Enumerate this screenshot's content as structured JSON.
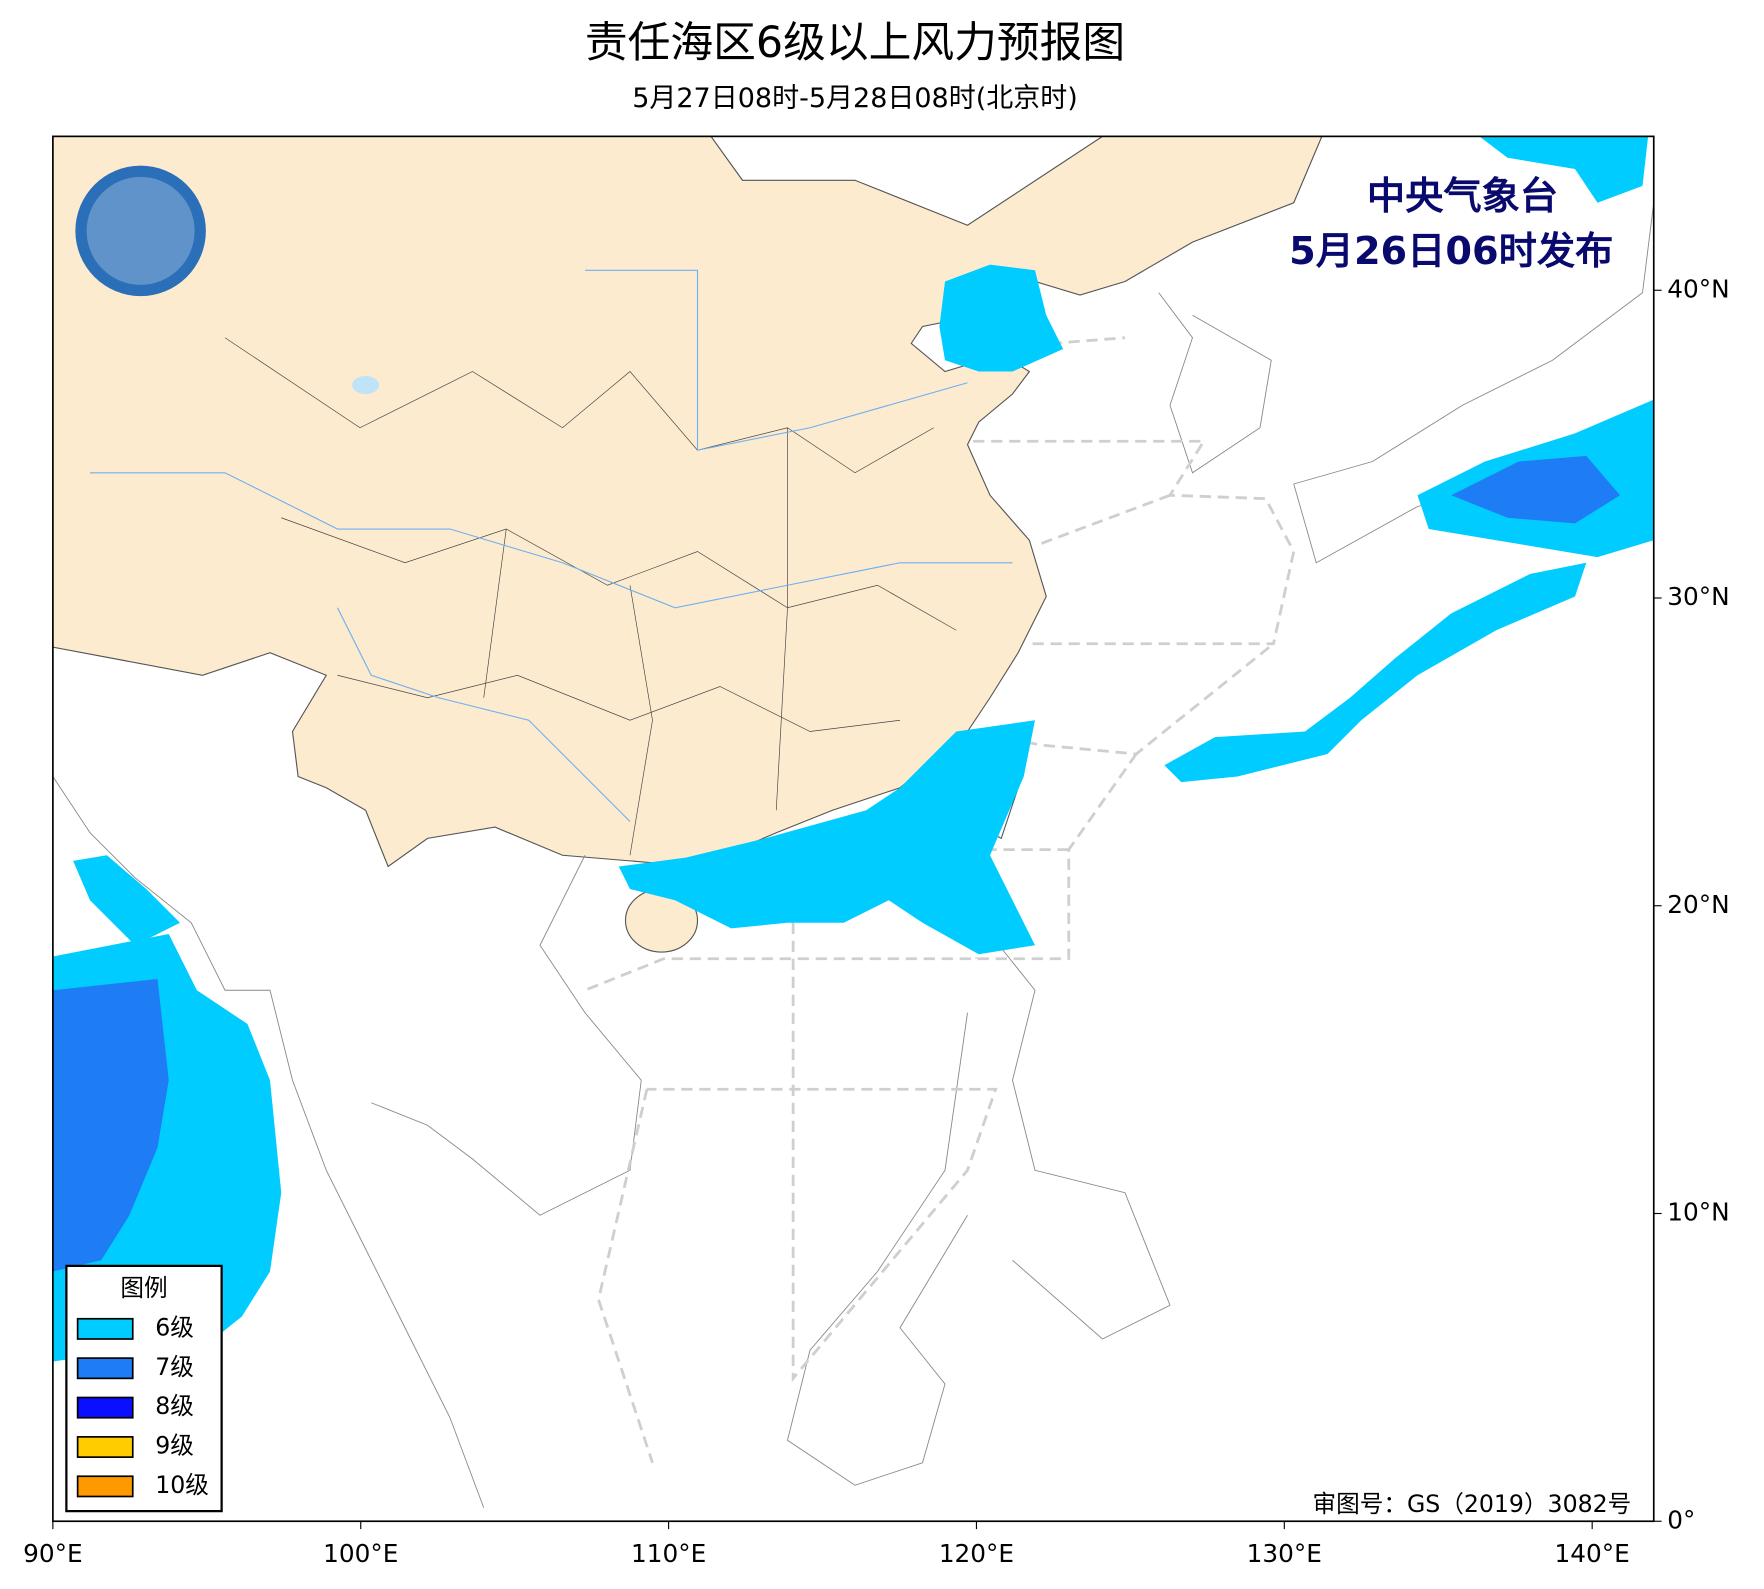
{
  "map": {
    "title": "责任海区6级以上风力预报图",
    "subtitle": "5月27日08时-5月28日08时(北京时)",
    "publisher": "中央气象台",
    "issued": "5月26日06时发布",
    "xlim": [
      90,
      142
    ],
    "ylim": [
      0,
      45
    ],
    "lon_ticks": [
      {
        "value": 90,
        "label": "90°E"
      },
      {
        "value": 100,
        "label": "100°E"
      },
      {
        "value": 110,
        "label": "110°E"
      },
      {
        "value": 120,
        "label": "120°E"
      },
      {
        "value": 130,
        "label": "130°E"
      },
      {
        "value": 140,
        "label": "140°E"
      }
    ],
    "lat_ticks": [
      {
        "value": 0,
        "label": "0°"
      },
      {
        "value": 10,
        "label": "10°N"
      },
      {
        "value": 20,
        "label": "20°N"
      },
      {
        "value": 30,
        "label": "30°N"
      },
      {
        "value": 40,
        "label": "40°N"
      }
    ],
    "legend": {
      "title": "图例",
      "items": [
        {
          "label": "6级",
          "color": "#00ccff"
        },
        {
          "label": "7级",
          "color": "#1e7df5"
        },
        {
          "label": "8级",
          "color": "#0a10ff"
        },
        {
          "label": "9级",
          "color": "#ffcc00"
        },
        {
          "label": "10级",
          "color": "#ff9900"
        }
      ]
    },
    "approval": "审图号：GS（2019）3082号"
  }
}
